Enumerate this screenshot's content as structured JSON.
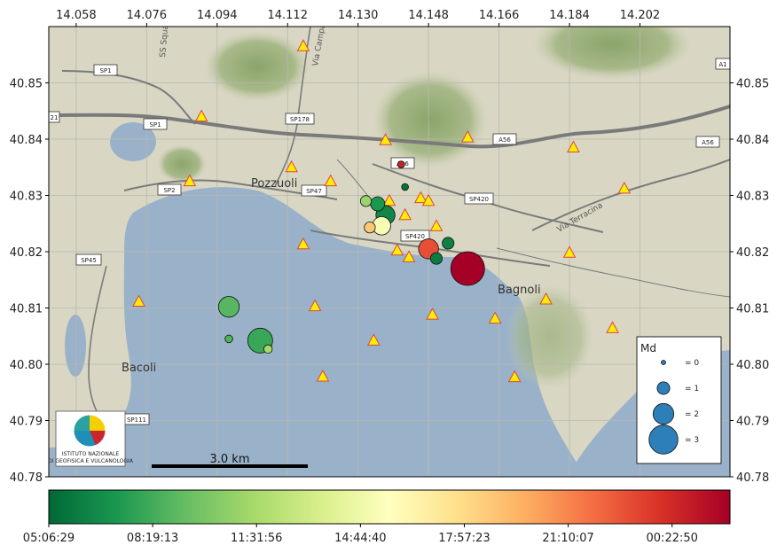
{
  "map": {
    "lon_range": [
      14.051,
      14.225
    ],
    "lat_range": [
      40.78,
      40.86
    ],
    "x_ticks": [
      {
        "value": 14.058,
        "label": "14.058"
      },
      {
        "value": 14.076,
        "label": "14.076"
      },
      {
        "value": 14.094,
        "label": "14.094"
      },
      {
        "value": 14.112,
        "label": "14.112"
      },
      {
        "value": 14.13,
        "label": "14.130"
      },
      {
        "value": 14.148,
        "label": "14.148"
      },
      {
        "value": 14.166,
        "label": "14.166"
      },
      {
        "value": 14.184,
        "label": "14.184"
      },
      {
        "value": 14.202,
        "label": "14.202"
      }
    ],
    "y_ticks": [
      {
        "value": 40.85,
        "label": "40.85"
      },
      {
        "value": 40.84,
        "label": "40.84"
      },
      {
        "value": 40.83,
        "label": "40.83"
      },
      {
        "value": 40.82,
        "label": "40.82"
      },
      {
        "value": 40.81,
        "label": "40.81"
      },
      {
        "value": 40.8,
        "label": "40.80"
      },
      {
        "value": 40.79,
        "label": "40.79"
      },
      {
        "value": 40.78,
        "label": "40.78"
      }
    ],
    "place_labels": {
      "pozzuoli": "Pozzuoli",
      "bagnoli": "Bagnoli",
      "bacoli": "Bacoli"
    },
    "road_labels": {
      "sp1a": "SP1",
      "sp1b": "SP1",
      "sp2": "SP2",
      "sp45": "SP45",
      "sp178": "SP178",
      "sp47": "SP47",
      "a56a": "A56",
      "a56b": "A56",
      "a56c": "A56",
      "sp420a": "SP420",
      "sp420b": "SP420",
      "sp111": "SP111",
      "a1": "A1",
      "r21": "21"
    },
    "street_labels": {
      "via_campana": "Via Campana",
      "via_squadra": "SS Squadra",
      "via_terracina": "Via Terracina"
    },
    "scale_bar_label": "3.0 km",
    "logo_text": {
      "line1": "ISTITUTO NAZIONALE",
      "line2": "DI GEOFISICA E VULCANOLOGIA"
    },
    "colors": {
      "sea": "#9ab2c9",
      "land": "#d8d6c2",
      "station_fill": "#ffee00",
      "station_edge": "#dd4444"
    }
  },
  "stations": [
    {
      "lon": 14.116,
      "lat": 40.8565
    },
    {
      "lon": 14.09,
      "lat": 40.844
    },
    {
      "lon": 14.137,
      "lat": 40.8398
    },
    {
      "lon": 14.158,
      "lat": 40.8403
    },
    {
      "lon": 14.185,
      "lat": 40.8385
    },
    {
      "lon": 14.087,
      "lat": 40.8325
    },
    {
      "lon": 14.113,
      "lat": 40.835
    },
    {
      "lon": 14.123,
      "lat": 40.8325
    },
    {
      "lon": 14.198,
      "lat": 40.8312
    },
    {
      "lon": 14.138,
      "lat": 40.829
    },
    {
      "lon": 14.146,
      "lat": 40.8295
    },
    {
      "lon": 14.148,
      "lat": 40.829
    },
    {
      "lon": 14.142,
      "lat": 40.8265
    },
    {
      "lon": 14.15,
      "lat": 40.8245
    },
    {
      "lon": 14.116,
      "lat": 40.8213
    },
    {
      "lon": 14.14,
      "lat": 40.8202
    },
    {
      "lon": 14.143,
      "lat": 40.819
    },
    {
      "lon": 14.184,
      "lat": 40.8198
    },
    {
      "lon": 14.074,
      "lat": 40.8111
    },
    {
      "lon": 14.119,
      "lat": 40.8103
    },
    {
      "lon": 14.149,
      "lat": 40.8088
    },
    {
      "lon": 14.165,
      "lat": 40.8081
    },
    {
      "lon": 14.178,
      "lat": 40.8115
    },
    {
      "lon": 14.195,
      "lat": 40.8064
    },
    {
      "lon": 14.134,
      "lat": 40.8042
    },
    {
      "lon": 14.121,
      "lat": 40.7978
    },
    {
      "lon": 14.17,
      "lat": 40.7977
    }
  ],
  "legend": {
    "title": "Md",
    "entries": [
      {
        "label": "= 0",
        "md": 0
      },
      {
        "label": "= 1",
        "md": 1
      },
      {
        "label": "= 2",
        "md": 2
      },
      {
        "label": "= 3",
        "md": 3
      }
    ]
  },
  "colorbar": {
    "labels": [
      "05:06:29",
      "08:19:13",
      "11:31:56",
      "14:44:40",
      "17:57:23",
      "21:10:07",
      "00:22:50"
    ],
    "stops": [
      "#006837",
      "#1a9850",
      "#66bd63",
      "#a6d96a",
      "#d9ef8b",
      "#ffffbf",
      "#fee08b",
      "#fdae61",
      "#f46d43",
      "#d73027",
      "#a50026"
    ]
  },
  "chart_data": {
    "type": "scatter",
    "x_label": "",
    "y_label": "",
    "xlim": [
      14.051,
      14.225
    ],
    "ylim": [
      40.78,
      40.86
    ],
    "points": [
      {
        "lon": 14.141,
        "lat": 40.8355,
        "md": 0.3,
        "t": 0.93
      },
      {
        "lon": 14.142,
        "lat": 40.8315,
        "md": 0.3,
        "t": 0.02
      },
      {
        "lon": 14.132,
        "lat": 40.829,
        "md": 0.8,
        "t": 0.28
      },
      {
        "lon": 14.135,
        "lat": 40.8285,
        "md": 1.2,
        "t": 0.1
      },
      {
        "lon": 14.137,
        "lat": 40.8265,
        "md": 1.8,
        "t": 0.06
      },
      {
        "lon": 14.133,
        "lat": 40.8243,
        "md": 0.8,
        "t": 0.65
      },
      {
        "lon": 14.136,
        "lat": 40.8246,
        "md": 1.7,
        "t": 0.48
      },
      {
        "lon": 14.148,
        "lat": 40.8205,
        "md": 1.9,
        "t": 0.85
      },
      {
        "lon": 14.153,
        "lat": 40.8215,
        "md": 0.9,
        "t": 0.05
      },
      {
        "lon": 14.15,
        "lat": 40.8188,
        "md": 0.9,
        "t": 0.04
      },
      {
        "lon": 14.158,
        "lat": 40.817,
        "md": 3.6,
        "t": 1.0
      },
      {
        "lon": 14.097,
        "lat": 40.8102,
        "md": 2.0,
        "t": 0.18
      },
      {
        "lon": 14.097,
        "lat": 40.8045,
        "md": 0.4,
        "t": 0.17
      },
      {
        "lon": 14.105,
        "lat": 40.8042,
        "md": 2.5,
        "t": 0.14
      },
      {
        "lon": 14.107,
        "lat": 40.8027,
        "md": 0.5,
        "t": 0.3
      }
    ]
  }
}
